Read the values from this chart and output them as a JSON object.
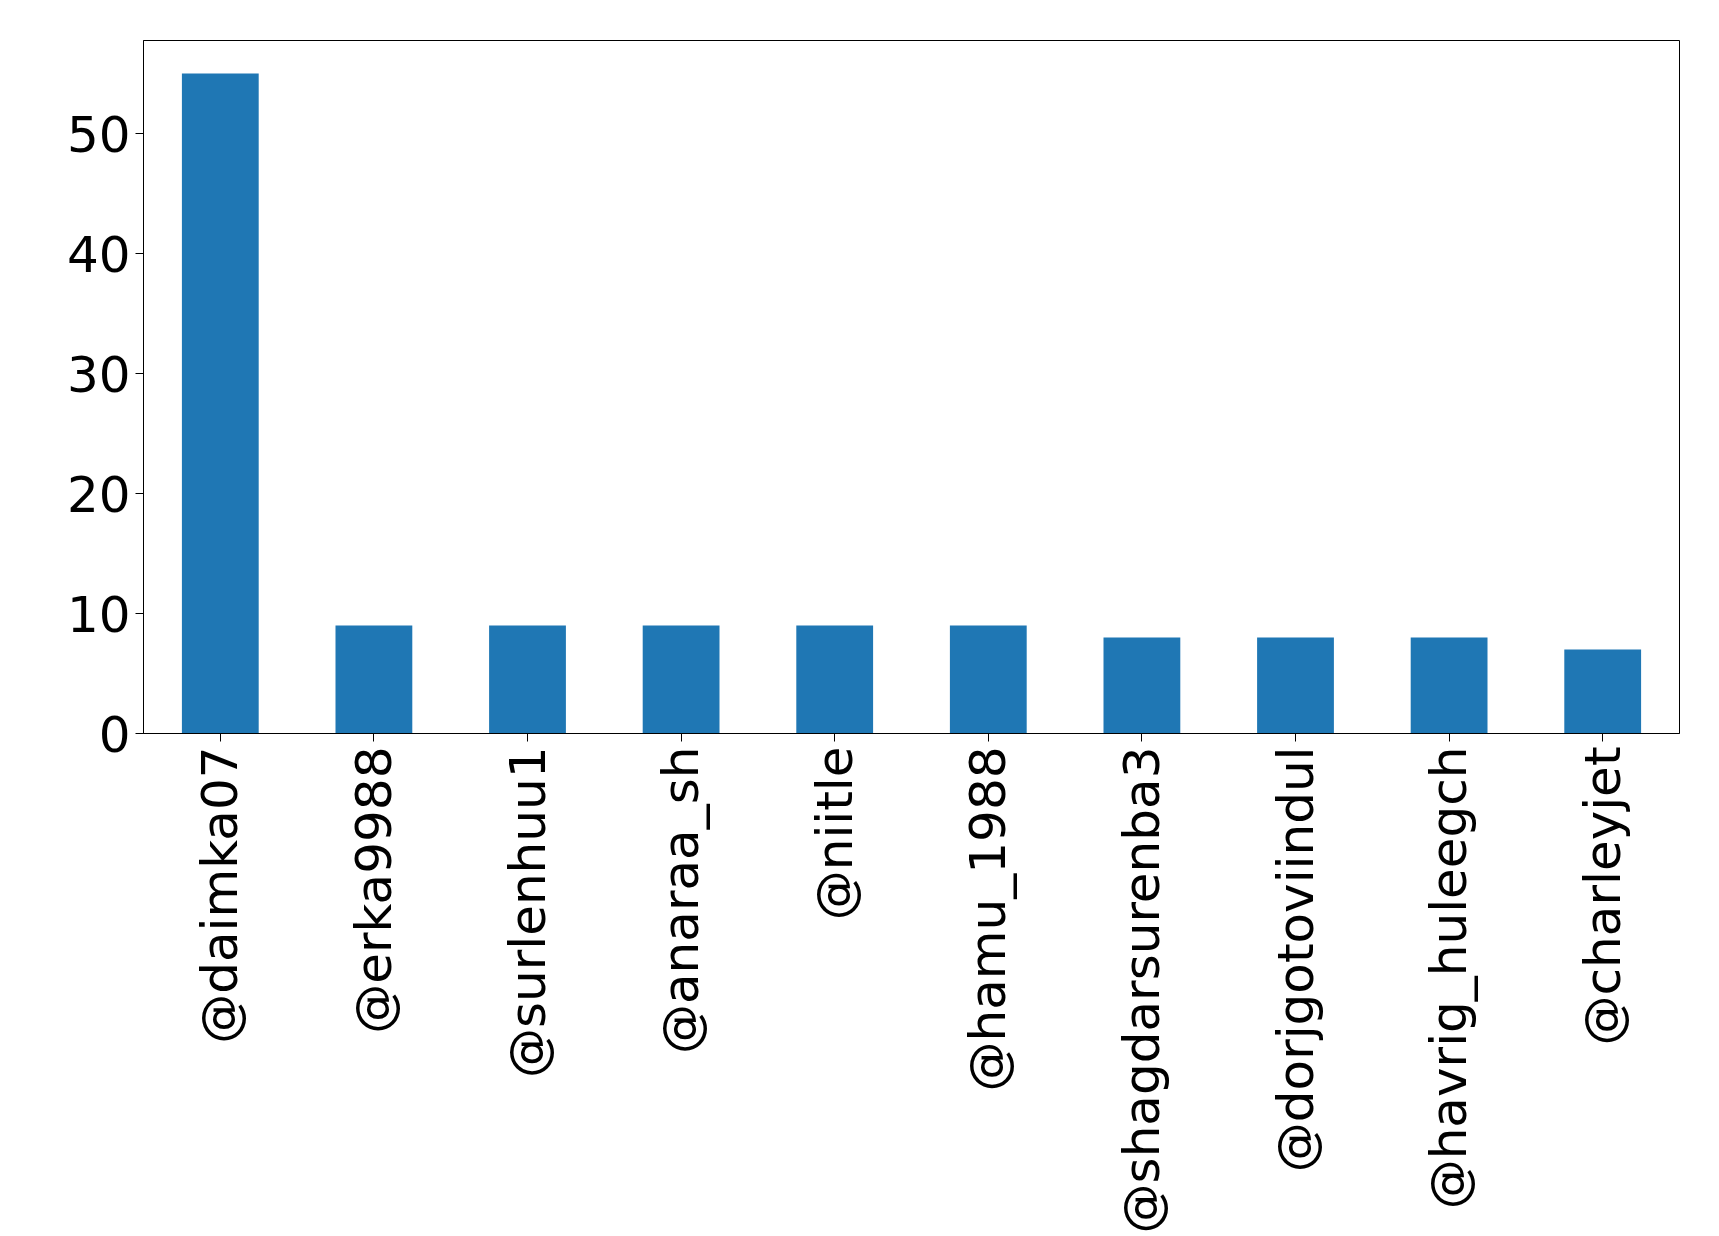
{
  "chart_data": {
    "type": "bar",
    "categories": [
      "@daimka07",
      "@erka9988",
      "@surlenhuu1",
      "@anaraa_sh",
      "@niitle",
      "@hamu_1988",
      "@shagdarsurenba3",
      "@dorjgotoviindul",
      "@havrig_huleegch",
      "@charleyjet"
    ],
    "values": [
      55,
      9,
      9,
      9,
      9,
      9,
      8,
      8,
      8,
      7
    ],
    "color": "#1f77b4",
    "ylim": [
      0,
      57.75
    ],
    "yticks": [
      0,
      10,
      20,
      30,
      40,
      50
    ]
  }
}
